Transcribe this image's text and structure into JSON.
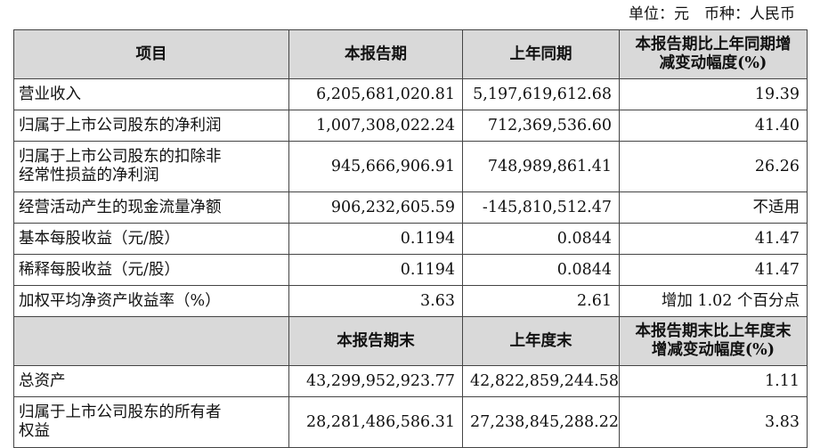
{
  "unit_line": "单位：元　币种：人民币",
  "header1": {
    "item": "项目",
    "current": "本报告期",
    "prior": "上年同期",
    "change_line1": "本报告期比上年同期增",
    "change_line2": "减变动幅度(%)"
  },
  "rows1": [
    {
      "item": "营业收入",
      "current": "6,205,681,020.81",
      "prior": "5,197,619,612.68",
      "change": "19.39"
    },
    {
      "item": "归属于上市公司股东的净利润",
      "current": "1,007,308,022.24",
      "prior": "712,369,536.60",
      "change": "41.40"
    },
    {
      "item_line1": "归属于上市公司股东的扣除非",
      "item_line2": "经常性损益的净利润",
      "current": "945,666,906.91",
      "prior": "748,989,861.41",
      "change": "26.26"
    },
    {
      "item": "经营活动产生的现金流量净额",
      "current": "906,232,605.59",
      "prior": "-145,810,512.47",
      "change": "不适用"
    },
    {
      "item": "基本每股收益（元/股）",
      "current": "0.1194",
      "prior": "0.0844",
      "change": "41.47"
    },
    {
      "item": "稀释每股收益（元/股）",
      "current": "0.1194",
      "prior": "0.0844",
      "change": "41.47"
    },
    {
      "item": "加权平均净资产收益率（%）",
      "current": "3.63",
      "prior": "2.61",
      "change": "增加 1.02 个百分点"
    }
  ],
  "header2": {
    "current": "本报告期末",
    "prior": "上年度末",
    "change_line1": "本报告期末比上年度末",
    "change_line2": "增减变动幅度(%)"
  },
  "rows2": [
    {
      "item": "总资产",
      "current": "43,299,952,923.77",
      "prior": "42,822,859,244.58",
      "change": "1.11"
    },
    {
      "item_line1": "归属于上市公司股东的所有者",
      "item_line2": "权益",
      "current": "28,281,486,586.31",
      "prior": "27,238,845,288.22",
      "change": "3.83"
    }
  ]
}
